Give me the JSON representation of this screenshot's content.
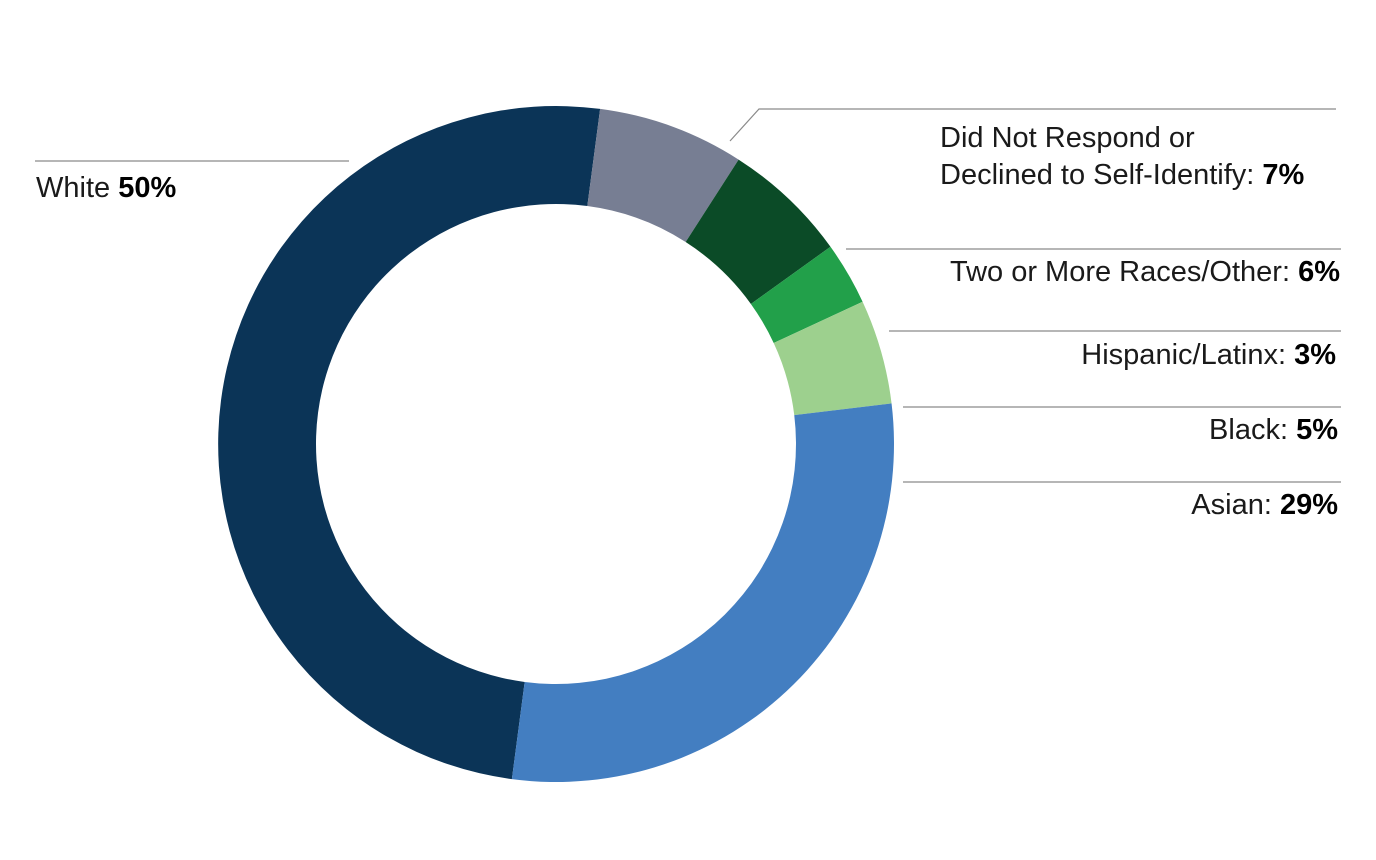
{
  "chart_data": {
    "type": "pie",
    "donut": true,
    "slices": [
      {
        "label": "White",
        "value": 50,
        "value_text": "50%",
        "color": "#0b3457"
      },
      {
        "label": "Did Not Respond or Declined to Self-Identify",
        "value": 7,
        "value_text": "7%",
        "color": "#777e93"
      },
      {
        "label": "Two or More Races/Other",
        "value": 6,
        "value_text": "6%",
        "color": "#0b4b27"
      },
      {
        "label": "Hispanic/Latinx",
        "value": 3,
        "value_text": "3%",
        "color": "#22a04a"
      },
      {
        "label": "Black",
        "value": 5,
        "value_text": "5%",
        "color": "#9dd08e"
      },
      {
        "label": "Asian",
        "value": 29,
        "value_text": "29%",
        "color": "#437ec1"
      }
    ],
    "labels": {
      "white": {
        "text": "White ",
        "value": "50%"
      },
      "didnot_line1": "Did Not Respond or",
      "didnot_line2": "Declined to Self-Identify: ",
      "didnot_value": "7%",
      "two": {
        "text": "Two or More Races/Other: ",
        "value": "6%"
      },
      "hispanic": {
        "text": "Hispanic/Latinx: ",
        "value": "3%"
      },
      "black": {
        "text": "Black: ",
        "value": "5%"
      },
      "asian": {
        "text": "Asian: ",
        "value": "29%"
      }
    },
    "legend": "none"
  }
}
